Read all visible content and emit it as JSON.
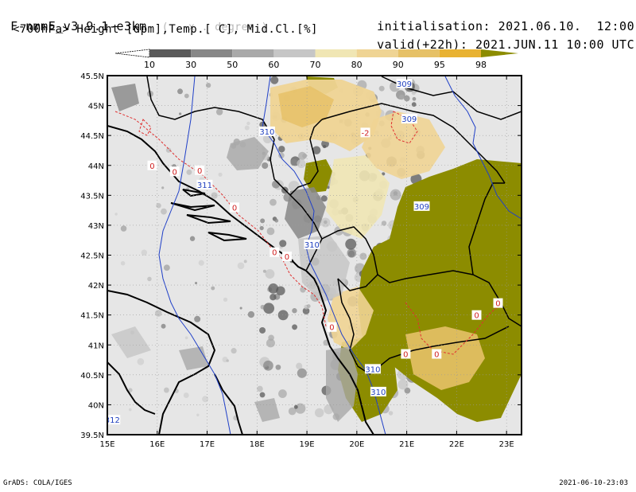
{
  "header": {
    "model": "F-nmmE_v3.9.1-e3km",
    "grid_note": "( . x . degree )",
    "fields": "<700hPa> Height [dpm],Temp.[ C], Mid.Cl.[%]",
    "init_label": "initialisation:",
    "init_date": "2021.06.10.",
    "init_time": "12:00 UTC",
    "valid_label": "valid(+22h):",
    "valid_date": "2021.JUN.11",
    "valid_time": "10:00 UTC"
  },
  "colorbar": {
    "labels": [
      "10",
      "30",
      "50",
      "60",
      "70",
      "80",
      "90",
      "95",
      "98"
    ],
    "colors": [
      "#5a5a5a",
      "#878787",
      "#a9a9a9",
      "#c6c6c6",
      "#f0e6b4",
      "#efd494",
      "#e6c167",
      "#e8b232",
      "#8c8c00"
    ]
  },
  "map": {
    "land_color": "#e6e6e6",
    "lat_labels": [
      "45.5N",
      "45N",
      "44.5N",
      "44N",
      "43.5N",
      "43N",
      "42.5N",
      "42N",
      "41.5N",
      "41N",
      "40.5N",
      "40N",
      "39.5N"
    ],
    "lon_labels": [
      "15E",
      "16E",
      "17E",
      "18E",
      "19E",
      "20E",
      "21E",
      "22E",
      "23E"
    ],
    "height_labels": [
      {
        "text": "309",
        "lon": 20.95,
        "lat": 45.37
      },
      {
        "text": "309",
        "lon": 21.05,
        "lat": 44.78
      },
      {
        "text": "309",
        "lon": 21.3,
        "lat": 43.32
      },
      {
        "text": "310",
        "lon": 18.2,
        "lat": 44.57
      },
      {
        "text": "311",
        "lon": 16.95,
        "lat": 43.68
      },
      {
        "text": "310",
        "lon": 19.1,
        "lat": 42.68
      },
      {
        "text": "310",
        "lon": 20.32,
        "lat": 40.6
      },
      {
        "text": "310",
        "lon": 20.43,
        "lat": 40.22
      },
      {
        "text": "312",
        "lon": 15.1,
        "lat": 39.75
      }
    ],
    "temp_labels": [
      {
        "text": "-2",
        "lon": 20.17,
        "lat": 44.55
      },
      {
        "text": "0",
        "lon": 15.9,
        "lat": 44.0
      },
      {
        "text": "0",
        "lon": 16.35,
        "lat": 43.9
      },
      {
        "text": "0",
        "lon": 16.85,
        "lat": 43.92
      },
      {
        "text": "0",
        "lon": 17.55,
        "lat": 43.3
      },
      {
        "text": "0",
        "lon": 18.35,
        "lat": 42.55
      },
      {
        "text": "0",
        "lon": 18.6,
        "lat": 42.48
      },
      {
        "text": "0",
        "lon": 19.5,
        "lat": 41.3
      },
      {
        "text": "0",
        "lon": 20.98,
        "lat": 40.85
      },
      {
        "text": "0",
        "lon": 21.6,
        "lat": 40.85
      },
      {
        "text": "0",
        "lon": 22.4,
        "lat": 41.5
      },
      {
        "text": "0",
        "lon": 22.83,
        "lat": 41.7
      }
    ]
  },
  "footer": {
    "left": "GrADS: COLA/IGES",
    "right": "2021-06-10-23:03"
  }
}
